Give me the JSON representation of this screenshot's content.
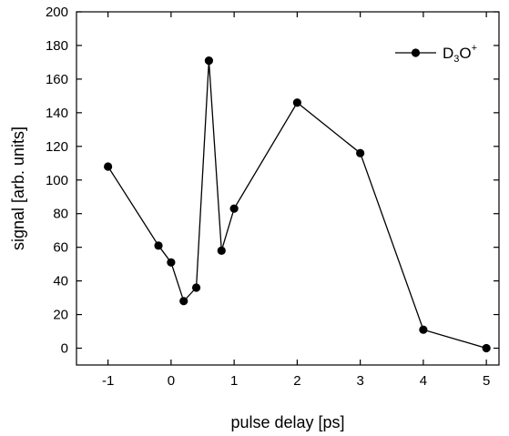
{
  "chart_data": {
    "type": "line",
    "xlabel": "pulse delay [ps]",
    "ylabel": "signal [arb. units]",
    "xlim": [
      -1.5,
      5.2
    ],
    "ylim": [
      -10,
      200
    ],
    "xticks": [
      -1,
      0,
      1,
      2,
      3,
      4,
      5
    ],
    "yticks": [
      0,
      20,
      40,
      60,
      80,
      100,
      120,
      140,
      160,
      180,
      200
    ],
    "xtick_labels": [
      "-1",
      "0",
      "1",
      "2",
      "3",
      "4",
      "5"
    ],
    "ytick_labels": [
      "0",
      "20",
      "40",
      "60",
      "80",
      "100",
      "120",
      "140",
      "160",
      "180",
      "200"
    ],
    "grid": false,
    "legend_position": "top-right",
    "series": [
      {
        "name_base": "D",
        "name_sub": "3",
        "name_mid": "O",
        "name_sup": "+",
        "color": "#000000",
        "marker": "filled-circle",
        "x": [
          -1,
          -0.2,
          0,
          0.2,
          0.4,
          0.6,
          0.8,
          1,
          2,
          3,
          4,
          5
        ],
        "y": [
          108,
          61,
          51,
          28,
          36,
          171,
          58,
          83,
          146,
          116,
          11,
          0
        ]
      }
    ]
  }
}
